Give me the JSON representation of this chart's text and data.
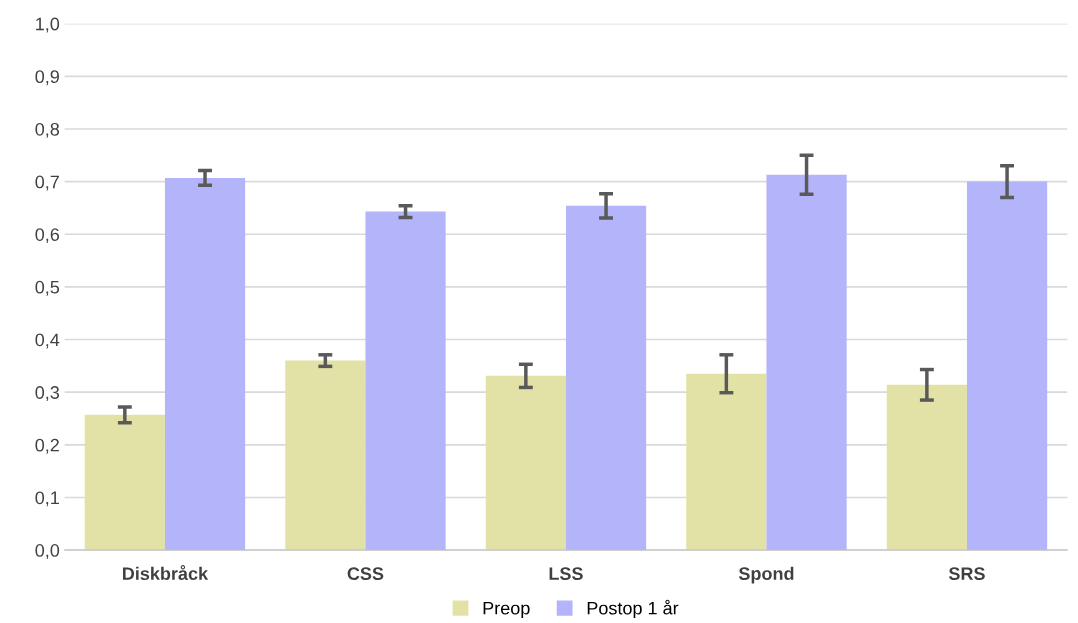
{
  "chart_data": {
    "type": "bar",
    "categories": [
      "Diskbråck",
      "CSS",
      "LSS",
      "Spond",
      "SRS"
    ],
    "series": [
      {
        "name": "Preop",
        "color": "#e2e2a6",
        "values": [
          0.257,
          0.36,
          0.331,
          0.335,
          0.314
        ],
        "errors": [
          0.015,
          0.011,
          0.022,
          0.036,
          0.029
        ]
      },
      {
        "name": "Postop 1 år",
        "color": "#b4b4fa",
        "values": [
          0.707,
          0.643,
          0.654,
          0.713,
          0.7
        ],
        "errors": [
          0.014,
          0.011,
          0.023,
          0.037,
          0.03
        ]
      }
    ],
    "ylim": [
      0,
      1
    ],
    "yticks": [
      {
        "value": 0,
        "label": "0,0"
      },
      {
        "value": 0.1,
        "label": "0,1"
      },
      {
        "value": 0.2,
        "label": "0,2"
      },
      {
        "value": 0.3,
        "label": "0,3"
      },
      {
        "value": 0.4,
        "label": "0,4"
      },
      {
        "value": 0.5,
        "label": "0,5"
      },
      {
        "value": 0.6,
        "label": "0,6"
      },
      {
        "value": 0.7,
        "label": "0,7"
      },
      {
        "value": 0.8,
        "label": "0,8"
      },
      {
        "value": 0.9,
        "label": "0,9"
      },
      {
        "value": 1,
        "label": "1,0"
      }
    ],
    "grid": "y",
    "legend": "bottom"
  }
}
